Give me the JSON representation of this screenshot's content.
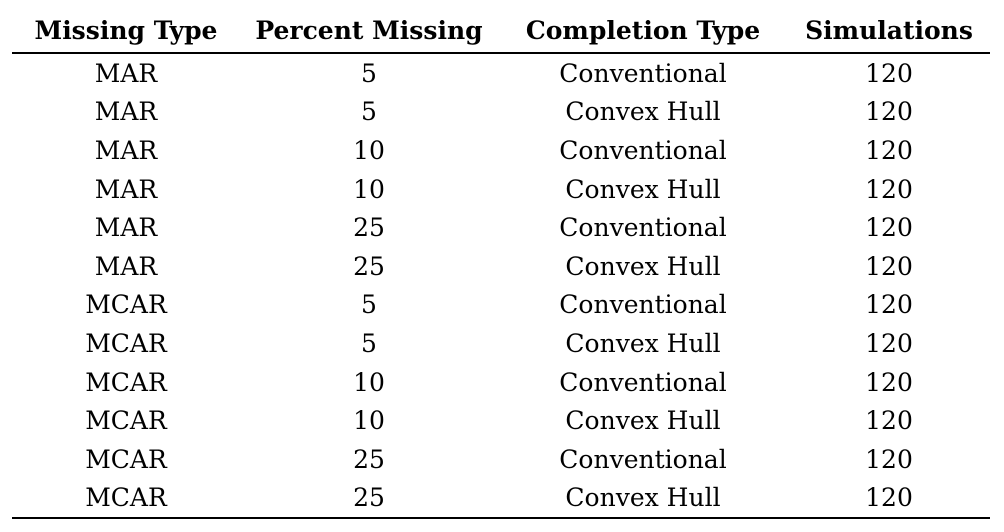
{
  "table": {
    "headers": [
      "Missing Type",
      "Percent Missing",
      "Completion Type",
      "Simulations"
    ],
    "rows": [
      [
        "MAR",
        "5",
        "Conventional",
        "120"
      ],
      [
        "MAR",
        "5",
        "Convex Hull",
        "120"
      ],
      [
        "MAR",
        "10",
        "Conventional",
        "120"
      ],
      [
        "MAR",
        "10",
        "Convex Hull",
        "120"
      ],
      [
        "MAR",
        "25",
        "Conventional",
        "120"
      ],
      [
        "MAR",
        "25",
        "Convex Hull",
        "120"
      ],
      [
        "MCAR",
        "5",
        "Conventional",
        "120"
      ],
      [
        "MCAR",
        "5",
        "Convex Hull",
        "120"
      ],
      [
        "MCAR",
        "10",
        "Conventional",
        "120"
      ],
      [
        "MCAR",
        "10",
        "Convex Hull",
        "120"
      ],
      [
        "MCAR",
        "25",
        "Conventional",
        "120"
      ],
      [
        "MCAR",
        "25",
        "Convex Hull",
        "120"
      ]
    ]
  }
}
